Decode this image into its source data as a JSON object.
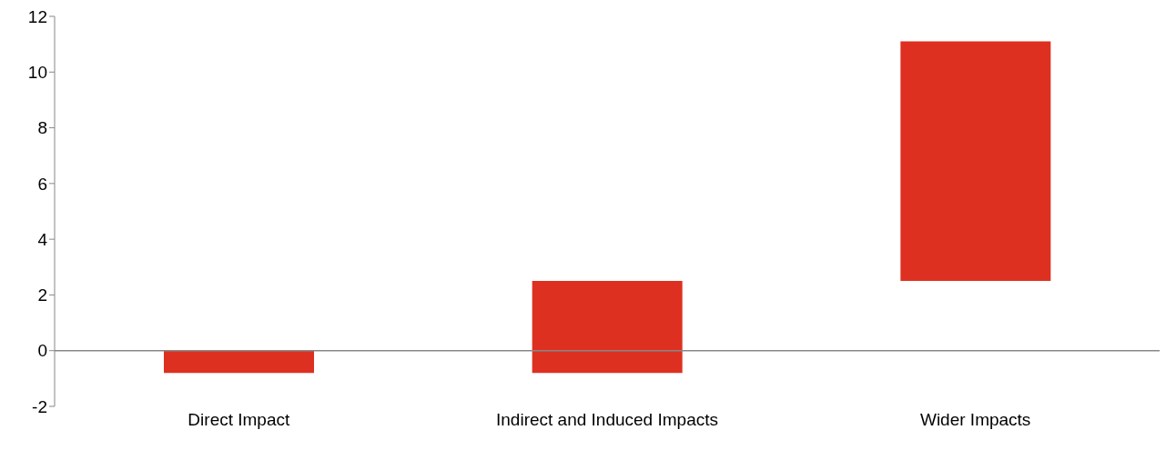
{
  "chart_data": {
    "type": "bar",
    "categories": [
      "Direct Impact",
      "Indirect and Induced Impacts",
      "Wider Impacts"
    ],
    "values": [
      -0.8,
      3.3,
      8.6
    ],
    "base": [
      0,
      -0.8,
      2.5
    ],
    "color": "#dd3020",
    "ylim": [
      -2,
      12
    ],
    "yticks": [
      -2,
      0,
      2,
      4,
      6,
      8,
      10,
      12
    ],
    "legend": false
  }
}
